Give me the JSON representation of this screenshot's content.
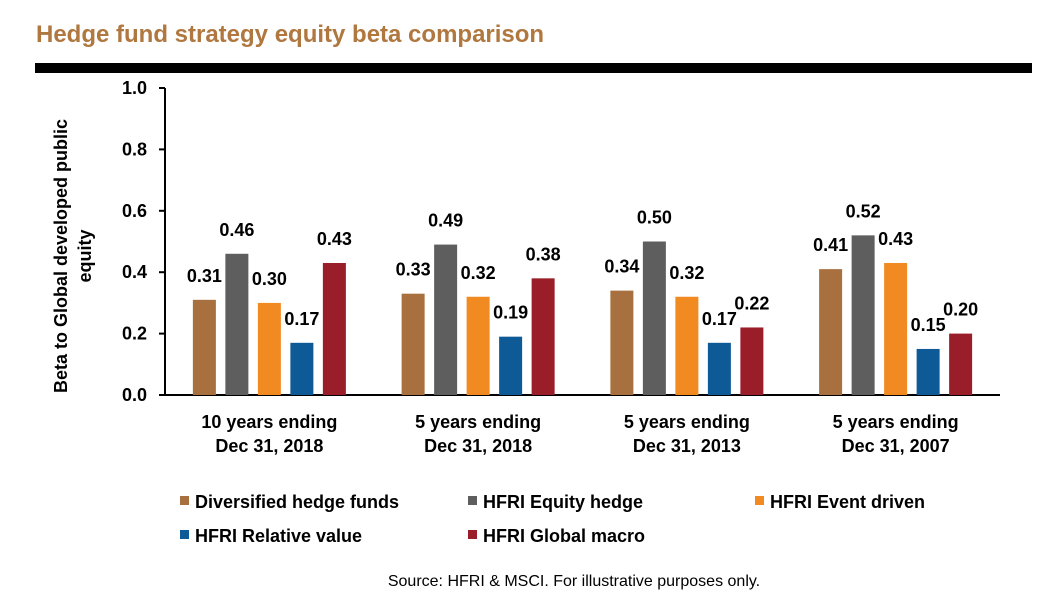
{
  "chart_data": {
    "type": "bar",
    "title": "Hedge fund strategy equity beta comparison",
    "ylabel": "Beta to Global developed public\nequity",
    "source": "Source: HFRI & MSCI. For illustrative purposes only.",
    "categories": [
      "10 years ending\nDec 31, 2018",
      "5 years ending\nDec 31, 2018",
      "5 years ending\nDec 31, 2013",
      "5 years ending\nDec 31, 2007"
    ],
    "series": [
      {
        "name": "Diversified hedge funds",
        "color": "#a8703f",
        "values": [
          0.31,
          0.33,
          0.34,
          0.41
        ],
        "value_labels": [
          "0.31",
          "0.33",
          "0.34",
          "0.41"
        ]
      },
      {
        "name": "HFRI Equity hedge",
        "color": "#5e5e5e",
        "values": [
          0.46,
          0.49,
          0.5,
          0.52
        ],
        "value_labels": [
          "0.46",
          "0.49",
          "0.50",
          "0.52"
        ]
      },
      {
        "name": "HFRI Event driven",
        "color": "#f28a22",
        "values": [
          0.3,
          0.32,
          0.32,
          0.43
        ],
        "value_labels": [
          "0.30",
          "0.32",
          "0.32",
          "0.43"
        ]
      },
      {
        "name": "HFRI Relative value",
        "color": "#0e5a97",
        "values": [
          0.17,
          0.19,
          0.17,
          0.15
        ],
        "value_labels": [
          "0.17",
          "0.19",
          "0.17",
          "0.15"
        ]
      },
      {
        "name": "HFRI Global macro",
        "color": "#9a1e2a",
        "values": [
          0.43,
          0.38,
          0.22,
          0.2
        ],
        "value_labels": [
          "0.43",
          "0.38",
          "0.22",
          "0.20"
        ]
      }
    ],
    "ylim": [
      0,
      1
    ],
    "yticks": [
      {
        "value": 0,
        "label": "0.0"
      },
      0.2,
      0.4,
      0.6,
      0.8,
      {
        "value": 1,
        "label": "1.0"
      }
    ],
    "grid": false
  }
}
